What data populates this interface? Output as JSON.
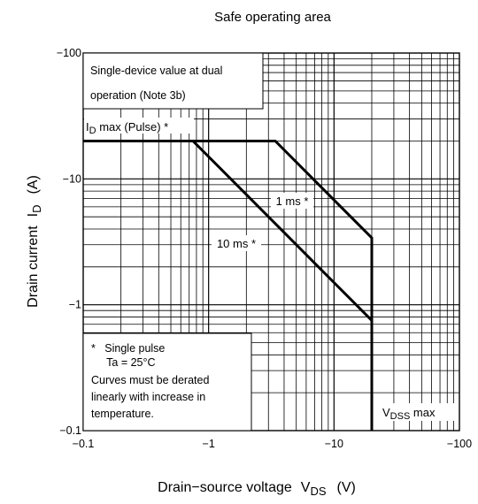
{
  "chart_data": {
    "type": "line",
    "title": "Safe operating area",
    "xlabel": {
      "text": "Drain−source voltage",
      "symbol": "V",
      "subscript": "DS",
      "unit": "(V)"
    },
    "ylabel": {
      "text": "Drain current",
      "symbol": "I",
      "subscript": "D",
      "unit": "(A)"
    },
    "x_scale": "log",
    "y_scale": "log",
    "xlim": [
      -0.1,
      -100
    ],
    "ylim": [
      -0.1,
      -100
    ],
    "x_ticks": [
      {
        "value": -0.1,
        "label": "−0.1"
      },
      {
        "value": -1,
        "label": "−1"
      },
      {
        "value": -10,
        "label": "−10"
      },
      {
        "value": -100,
        "label": "−100"
      }
    ],
    "y_ticks": [
      {
        "value": -0.1,
        "label": "−0.1"
      },
      {
        "value": -1,
        "label": "−1"
      },
      {
        "value": -10,
        "label": "−10"
      },
      {
        "value": -100,
        "label": "−100"
      }
    ],
    "grid": true,
    "series": [
      {
        "name": "1 ms *",
        "x": [
          -0.1,
          -3.4,
          -20,
          -20
        ],
        "y": [
          -20,
          -20,
          -3.4,
          -0.1
        ]
      },
      {
        "name": "10 ms *",
        "x": [
          -0.1,
          -0.75,
          -20,
          -20
        ],
        "y": [
          -20,
          -20,
          -0.75,
          -0.1
        ]
      }
    ],
    "annotations": {
      "note_box": [
        "Single-device value at dual",
        "operation (Note 3b)"
      ],
      "id_max": {
        "main": "I",
        "sub": "D",
        "rest": " max (Pulse) *"
      },
      "label_1ms": "1 ms *",
      "label_10ms": "10 ms *",
      "conditions_box": [
        "*   Single pulse",
        "     Ta = 25°C",
        "Curves must be derated",
        "linearly with increase in",
        "temperature."
      ],
      "vdss_max": {
        "main": "V",
        "sub": "DSS",
        "rest": " max"
      }
    }
  }
}
